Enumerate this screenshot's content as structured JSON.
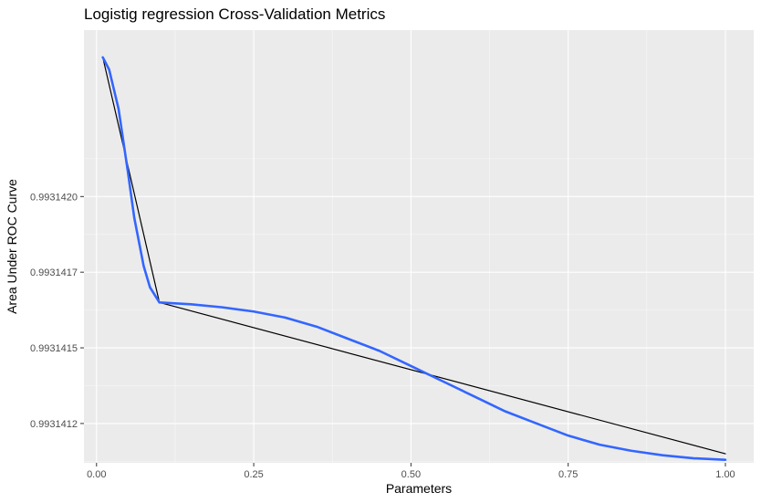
{
  "chart_data": {
    "type": "line",
    "title": "Logistig regression Cross-Validation Metrics",
    "xlabel": "Parameters",
    "ylabel": "Area Under ROC Curve",
    "xlim": [
      -0.02,
      1.045
    ],
    "ylim": [
      0.99314107,
      0.9931425
    ],
    "x_ticks": [
      0.0,
      0.25,
      0.5,
      0.75,
      1.0
    ],
    "x_tick_labels": [
      "0.00",
      "0.25",
      "0.50",
      "0.75",
      "1.00"
    ],
    "y_ticks": [
      0.9931412,
      0.99314145,
      0.9931417,
      0.99314195
    ],
    "y_tick_labels": [
      "0.9931412",
      "0.9931415",
      "0.9931417",
      "0.9931420"
    ],
    "grid": true,
    "legend": "none",
    "series": [
      {
        "kind": "observed",
        "color": "#000000",
        "x": [
          0.01,
          0.1,
          1.0
        ],
        "y": [
          0.99314241,
          0.9931416,
          0.9931411
        ]
      },
      {
        "kind": "smooth",
        "color": "#3366ff",
        "x": [
          0.01,
          0.02,
          0.035,
          0.05,
          0.06,
          0.075,
          0.085,
          0.1,
          0.15,
          0.2,
          0.25,
          0.3,
          0.35,
          0.4,
          0.45,
          0.5,
          0.55,
          0.6,
          0.65,
          0.7,
          0.75,
          0.8,
          0.85,
          0.9,
          0.95,
          1.0
        ],
        "y": [
          0.99314241,
          0.99314237,
          0.99314224,
          0.99314203,
          0.99314188,
          0.99314172,
          0.99314165,
          0.9931416,
          0.993141594,
          0.993141584,
          0.99314157,
          0.99314155,
          0.99314152,
          0.99314148,
          0.99314144,
          0.99314139,
          0.99314134,
          0.99314129,
          0.99314124,
          0.9931412,
          0.99314116,
          0.99314113,
          0.99314111,
          0.993141095,
          0.993141085,
          0.99314108
        ]
      }
    ]
  }
}
